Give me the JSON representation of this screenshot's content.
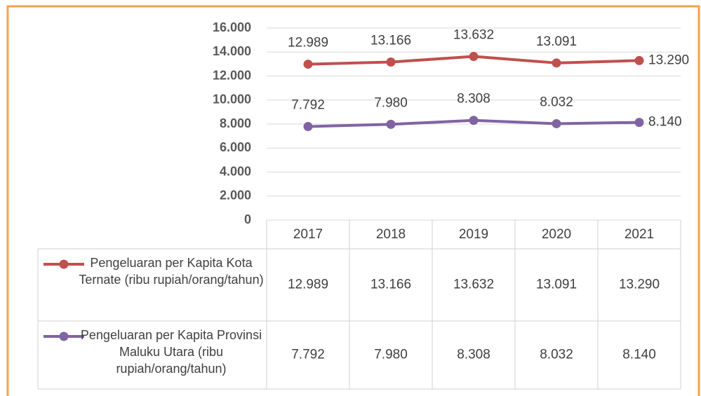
{
  "chart_data": {
    "type": "line",
    "categories": [
      "2017",
      "2018",
      "2019",
      "2020",
      "2021"
    ],
    "series": [
      {
        "name": "Pengeluaran per Kapita Kota Ternate (ribu rupiah/orang/tahun)",
        "color": "#c0504d",
        "values": [
          12989,
          13166,
          13632,
          13091,
          13290
        ],
        "value_labels": [
          "12.989",
          "13.166",
          "13.632",
          "13.091",
          "13.290"
        ]
      },
      {
        "name": "Pengeluaran per Kapita Provinsi Maluku Utara (ribu rupiah/orang/tahun)",
        "color": "#8064a2",
        "values": [
          7792,
          7980,
          8308,
          8032,
          8140
        ],
        "value_labels": [
          "7.792",
          "7.980",
          "8.308",
          "8.032",
          "8.140"
        ]
      }
    ],
    "ylim": [
      0,
      16000
    ],
    "yticks": [
      0,
      {
        "value": 2000,
        "label": "2.000"
      },
      {
        "value": 4000,
        "label": "4.000"
      },
      {
        "value": 6000,
        "label": "6.000"
      },
      {
        "value": 8000,
        "label": "8.000"
      },
      {
        "value": 10000,
        "label": "10.000"
      },
      {
        "value": 12000,
        "label": "12.000"
      },
      {
        "value": 14000,
        "label": "14.000"
      },
      {
        "value": 16000,
        "label": "16.000"
      }
    ],
    "grid": true
  }
}
